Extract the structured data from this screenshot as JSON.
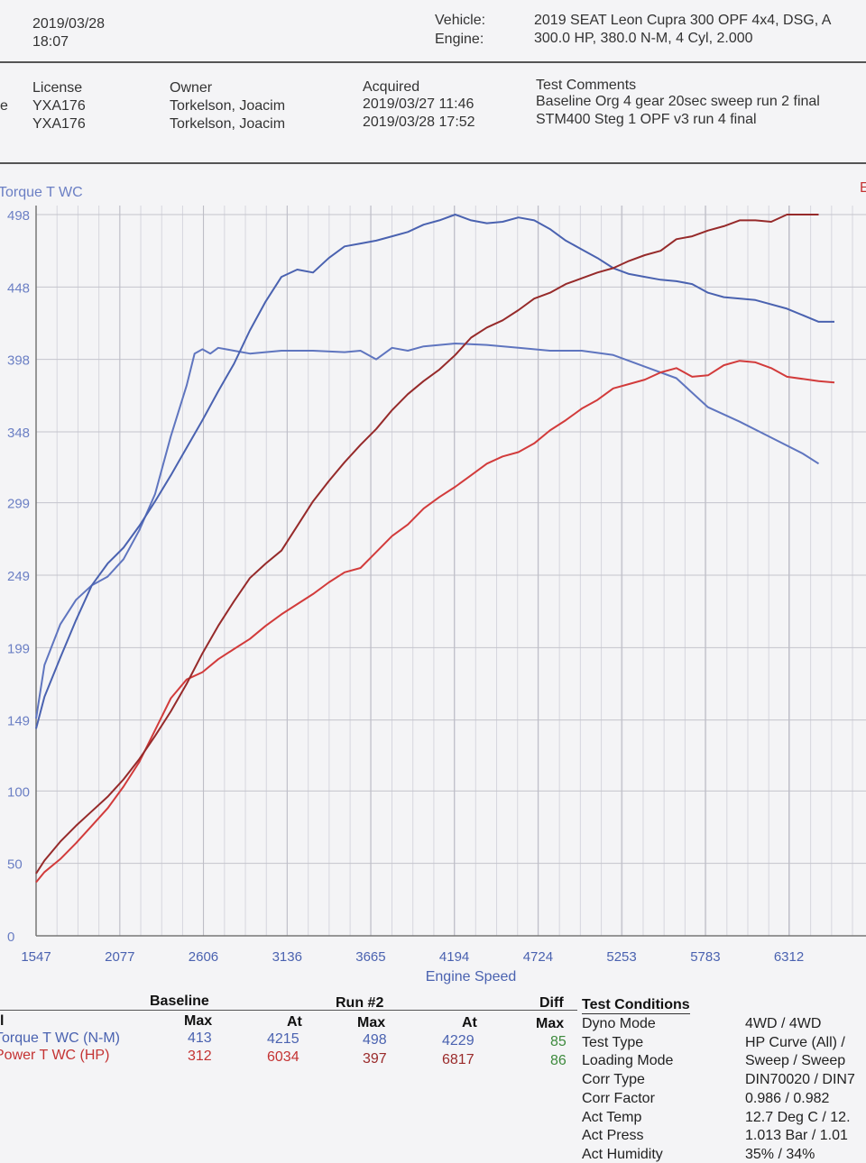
{
  "header": {
    "date": "2019/03/28",
    "time": "18:07",
    "vehicle_label": "Vehicle:",
    "vehicle_value": "2019 SEAT Leon Cupra 300 OPF 4x4, DSG, A",
    "engine_label": "Engine:",
    "engine_value": "300.0 HP, 380.0 N-M, 4 Cyl, 2.000"
  },
  "runs_info": {
    "left_edge_char": "e",
    "license_label": "License",
    "owner_label": "Owner",
    "acquired_label": "Acquired",
    "comments_label": "Test Comments",
    "rows": [
      {
        "license": "YXA176",
        "owner": "Torkelson, Joacim",
        "acquired": "2019/03/27 11:46",
        "comment": "Baseline Org 4 gear 20sec sweep run 2 final"
      },
      {
        "license": "YXA176",
        "owner": "Torkelson, Joacim",
        "acquired": "2019/03/28 17:52",
        "comment": "STM400 Steg 1 OPF v3 run 4 final"
      }
    ]
  },
  "chart_data": {
    "type": "line",
    "left_axis_title": "Torque T WC",
    "right_axis_title_fragment": "E",
    "xlabel": "Engine Speed",
    "x_ticks": [
      "1547",
      "2077",
      "2606",
      "3136",
      "3665",
      "4194",
      "4724",
      "5253",
      "5783",
      "6312"
    ],
    "y_ticks": [
      "0",
      "50",
      "100",
      "149",
      "199",
      "249",
      "299",
      "348",
      "398",
      "448",
      "498"
    ],
    "xlim": [
      1547,
      6800
    ],
    "ylim": [
      0,
      498
    ],
    "grid": true,
    "colors": {
      "baseline_torque": "#5f75bf",
      "run2_torque": "#4a62b0",
      "baseline_power": "#d23b3b",
      "run2_power": "#962a2a"
    },
    "series": [
      {
        "key": "baseline_torque",
        "values": [
          [
            1547,
            150
          ],
          [
            1600,
            187
          ],
          [
            1700,
            215
          ],
          [
            1800,
            232
          ],
          [
            1900,
            242
          ],
          [
            2000,
            248
          ],
          [
            2100,
            260
          ],
          [
            2200,
            280
          ],
          [
            2300,
            305
          ],
          [
            2400,
            345
          ],
          [
            2500,
            380
          ],
          [
            2550,
            402
          ],
          [
            2600,
            405
          ],
          [
            2650,
            402
          ],
          [
            2700,
            406
          ],
          [
            2800,
            404
          ],
          [
            2900,
            402
          ],
          [
            3000,
            403
          ],
          [
            3100,
            404
          ],
          [
            3300,
            404
          ],
          [
            3500,
            403
          ],
          [
            3600,
            404
          ],
          [
            3700,
            398
          ],
          [
            3800,
            406
          ],
          [
            3900,
            404
          ],
          [
            4000,
            407
          ],
          [
            4100,
            408
          ],
          [
            4200,
            409
          ],
          [
            4400,
            408
          ],
          [
            4600,
            406
          ],
          [
            4800,
            404
          ],
          [
            5000,
            404
          ],
          [
            5200,
            401
          ],
          [
            5400,
            393
          ],
          [
            5600,
            385
          ],
          [
            5700,
            375
          ],
          [
            5800,
            365
          ],
          [
            6000,
            355
          ],
          [
            6200,
            344
          ],
          [
            6400,
            333
          ],
          [
            6500,
            326
          ]
        ]
      },
      {
        "key": "run2_torque",
        "values": [
          [
            1547,
            143
          ],
          [
            1600,
            165
          ],
          [
            1700,
            192
          ],
          [
            1800,
            218
          ],
          [
            1900,
            242
          ],
          [
            2000,
            257
          ],
          [
            2100,
            268
          ],
          [
            2200,
            283
          ],
          [
            2300,
            300
          ],
          [
            2400,
            318
          ],
          [
            2500,
            337
          ],
          [
            2600,
            356
          ],
          [
            2700,
            376
          ],
          [
            2800,
            395
          ],
          [
            2900,
            418
          ],
          [
            3000,
            438
          ],
          [
            3100,
            455
          ],
          [
            3200,
            460
          ],
          [
            3300,
            458
          ],
          [
            3400,
            468
          ],
          [
            3500,
            476
          ],
          [
            3600,
            478
          ],
          [
            3700,
            480
          ],
          [
            3800,
            483
          ],
          [
            3900,
            486
          ],
          [
            4000,
            491
          ],
          [
            4100,
            494
          ],
          [
            4200,
            498
          ],
          [
            4300,
            494
          ],
          [
            4400,
            492
          ],
          [
            4500,
            493
          ],
          [
            4600,
            496
          ],
          [
            4700,
            494
          ],
          [
            4800,
            488
          ],
          [
            4900,
            480
          ],
          [
            5000,
            474
          ],
          [
            5100,
            468
          ],
          [
            5200,
            461
          ],
          [
            5300,
            457
          ],
          [
            5400,
            455
          ],
          [
            5500,
            453
          ],
          [
            5600,
            452
          ],
          [
            5700,
            450
          ],
          [
            5800,
            444
          ],
          [
            5900,
            441
          ],
          [
            6100,
            439
          ],
          [
            6300,
            433
          ],
          [
            6500,
            424
          ],
          [
            6600,
            424
          ]
        ]
      },
      {
        "key": "baseline_power",
        "values": [
          [
            1547,
            37
          ],
          [
            1600,
            44
          ],
          [
            1700,
            53
          ],
          [
            1800,
            64
          ],
          [
            1900,
            76
          ],
          [
            2000,
            88
          ],
          [
            2100,
            103
          ],
          [
            2200,
            120
          ],
          [
            2300,
            142
          ],
          [
            2400,
            164
          ],
          [
            2500,
            177
          ],
          [
            2600,
            182
          ],
          [
            2700,
            191
          ],
          [
            2800,
            198
          ],
          [
            2900,
            205
          ],
          [
            3000,
            214
          ],
          [
            3100,
            222
          ],
          [
            3200,
            229
          ],
          [
            3300,
            236
          ],
          [
            3400,
            244
          ],
          [
            3500,
            251
          ],
          [
            3600,
            254
          ],
          [
            3700,
            265
          ],
          [
            3800,
            276
          ],
          [
            3900,
            284
          ],
          [
            4000,
            295
          ],
          [
            4100,
            303
          ],
          [
            4200,
            310
          ],
          [
            4300,
            318
          ],
          [
            4400,
            326
          ],
          [
            4500,
            331
          ],
          [
            4600,
            334
          ],
          [
            4700,
            340
          ],
          [
            4800,
            349
          ],
          [
            4900,
            356
          ],
          [
            5000,
            364
          ],
          [
            5100,
            370
          ],
          [
            5200,
            378
          ],
          [
            5300,
            381
          ],
          [
            5400,
            384
          ],
          [
            5500,
            389
          ],
          [
            5600,
            392
          ],
          [
            5700,
            386
          ],
          [
            5800,
            387
          ],
          [
            5900,
            394
          ],
          [
            6000,
            397
          ],
          [
            6100,
            396
          ],
          [
            6200,
            392
          ],
          [
            6300,
            386
          ],
          [
            6500,
            383
          ],
          [
            6600,
            382
          ]
        ]
      },
      {
        "key": "run2_power",
        "values": [
          [
            1547,
            43
          ],
          [
            1600,
            52
          ],
          [
            1700,
            65
          ],
          [
            1800,
            76
          ],
          [
            1900,
            86
          ],
          [
            2000,
            96
          ],
          [
            2100,
            108
          ],
          [
            2200,
            122
          ],
          [
            2300,
            138
          ],
          [
            2400,
            155
          ],
          [
            2500,
            174
          ],
          [
            2600,
            195
          ],
          [
            2700,
            214
          ],
          [
            2800,
            231
          ],
          [
            2900,
            247
          ],
          [
            3000,
            257
          ],
          [
            3100,
            266
          ],
          [
            3200,
            283
          ],
          [
            3300,
            300
          ],
          [
            3400,
            314
          ],
          [
            3500,
            327
          ],
          [
            3600,
            339
          ],
          [
            3700,
            350
          ],
          [
            3800,
            363
          ],
          [
            3900,
            374
          ],
          [
            4000,
            383
          ],
          [
            4100,
            391
          ],
          [
            4200,
            401
          ],
          [
            4300,
            413
          ],
          [
            4400,
            420
          ],
          [
            4500,
            425
          ],
          [
            4600,
            432
          ],
          [
            4700,
            440
          ],
          [
            4800,
            444
          ],
          [
            4900,
            450
          ],
          [
            5000,
            454
          ],
          [
            5100,
            458
          ],
          [
            5200,
            461
          ],
          [
            5300,
            466
          ],
          [
            5400,
            470
          ],
          [
            5500,
            473
          ],
          [
            5600,
            481
          ],
          [
            5700,
            483
          ],
          [
            5800,
            487
          ],
          [
            5900,
            490
          ],
          [
            6000,
            494
          ],
          [
            6100,
            494
          ],
          [
            6200,
            493
          ],
          [
            6300,
            498
          ],
          [
            6500,
            498
          ]
        ]
      }
    ]
  },
  "results_table": {
    "left_edge_row_header": "l",
    "baseline_label": "Baseline",
    "run2_label": "Run #2",
    "diff_label": "Diff",
    "max_label": "Max",
    "at_label": "At",
    "rows": [
      {
        "name": "Torque T WC (N-M)",
        "baseline_max": "413",
        "baseline_at": "4215",
        "run2_max": "498",
        "run2_at": "4229",
        "diff_max": "85"
      },
      {
        "name": "Power T WC (HP)",
        "baseline_max": "312",
        "baseline_at": "6034",
        "run2_max": "397",
        "run2_at": "6817",
        "diff_max": "86"
      }
    ]
  },
  "test_conditions": {
    "title": "Test Conditions",
    "items": [
      {
        "label": "Dyno Mode",
        "value": "4WD / 4WD"
      },
      {
        "label": "Test Type",
        "value": "HP Curve (All) /"
      },
      {
        "label": "Loading Mode",
        "value": "Sweep / Sweep"
      },
      {
        "label": "Corr Type",
        "value": "DIN70020 / DIN7"
      },
      {
        "label": "Corr Factor",
        "value": "0.986 / 0.982"
      },
      {
        "label": "Act Temp",
        "value": "12.7 Deg C / 12."
      },
      {
        "label": "Act Press",
        "value": "1.013 Bar / 1.01"
      },
      {
        "label": "Act Humidity",
        "value": "35% / 34%"
      }
    ]
  }
}
